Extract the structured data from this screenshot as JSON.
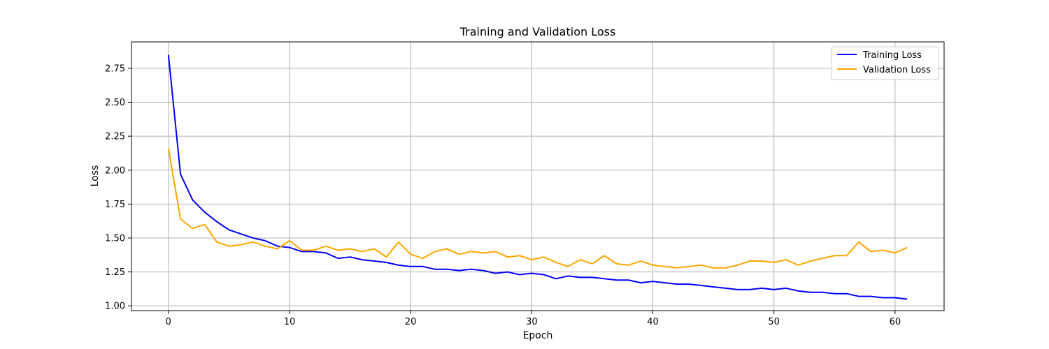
{
  "chart_data": {
    "type": "line",
    "title": "Training and Validation Loss",
    "xlabel": "Epoch",
    "ylabel": "Loss",
    "xlim": [
      -3.05,
      64.05
    ],
    "ylim": [
      0.965,
      2.945
    ],
    "xticks": [
      0,
      10,
      20,
      30,
      40,
      50,
      60
    ],
    "yticks": [
      1.0,
      1.25,
      1.5,
      1.75,
      2.0,
      2.25,
      2.5,
      2.75
    ],
    "grid": true,
    "legend_position": "top-right",
    "x": [
      0,
      1,
      2,
      3,
      4,
      5,
      6,
      7,
      8,
      9,
      10,
      11,
      12,
      13,
      14,
      15,
      16,
      17,
      18,
      19,
      20,
      21,
      22,
      23,
      24,
      25,
      26,
      27,
      28,
      29,
      30,
      31,
      32,
      33,
      34,
      35,
      36,
      37,
      38,
      39,
      40,
      41,
      42,
      43,
      44,
      45,
      46,
      47,
      48,
      49,
      50,
      51,
      52,
      53,
      54,
      55,
      56,
      57,
      58,
      59,
      60,
      61
    ],
    "series": [
      {
        "name": "Training Loss",
        "color": "#0000ff",
        "values": [
          2.85,
          1.97,
          1.78,
          1.69,
          1.62,
          1.56,
          1.53,
          1.5,
          1.48,
          1.44,
          1.43,
          1.4,
          1.4,
          1.39,
          1.35,
          1.36,
          1.34,
          1.33,
          1.32,
          1.3,
          1.29,
          1.29,
          1.27,
          1.27,
          1.26,
          1.27,
          1.26,
          1.24,
          1.25,
          1.23,
          1.24,
          1.23,
          1.2,
          1.22,
          1.21,
          1.21,
          1.2,
          1.19,
          1.19,
          1.17,
          1.18,
          1.17,
          1.16,
          1.16,
          1.15,
          1.14,
          1.13,
          1.12,
          1.12,
          1.13,
          1.12,
          1.13,
          1.11,
          1.1,
          1.1,
          1.09,
          1.09,
          1.07,
          1.07,
          1.06,
          1.06,
          1.05
        ]
      },
      {
        "name": "Validation Loss",
        "color": "#ffa500",
        "values": [
          2.16,
          1.64,
          1.57,
          1.6,
          1.47,
          1.44,
          1.45,
          1.47,
          1.44,
          1.42,
          1.48,
          1.41,
          1.41,
          1.44,
          1.41,
          1.42,
          1.4,
          1.42,
          1.36,
          1.47,
          1.38,
          1.35,
          1.4,
          1.42,
          1.38,
          1.4,
          1.39,
          1.4,
          1.36,
          1.37,
          1.34,
          1.36,
          1.32,
          1.29,
          1.34,
          1.31,
          1.37,
          1.31,
          1.3,
          1.33,
          1.3,
          1.29,
          1.28,
          1.29,
          1.3,
          1.28,
          1.28,
          1.3,
          1.33,
          1.33,
          1.32,
          1.34,
          1.3,
          1.33,
          1.35,
          1.37,
          1.37,
          1.47,
          1.4,
          1.41,
          1.39,
          1.43
        ]
      }
    ]
  }
}
